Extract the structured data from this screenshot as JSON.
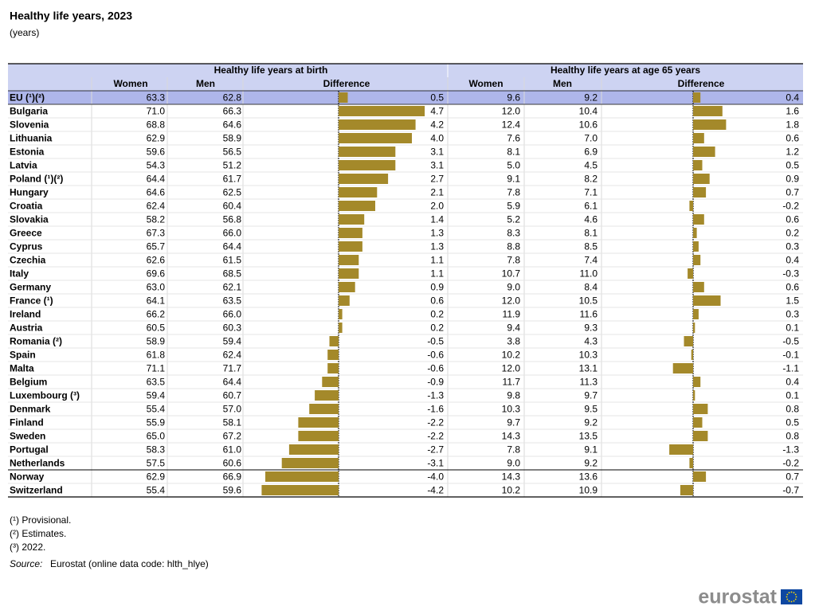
{
  "header": {
    "title": "Healthy life years, 2023",
    "subtitle": "(years)"
  },
  "table": {
    "groups": [
      "Healthy life years at birth",
      "Healthy life years at age 65 years"
    ],
    "columns": [
      "Women",
      "Men",
      "Difference",
      "Women",
      "Men",
      "Difference"
    ],
    "rows": [
      [
        "EU (¹)(²)",
        "63.3",
        "62.8",
        "0.5",
        "9.6",
        "9.2",
        "0.4"
      ],
      [
        "Bulgaria",
        "71.0",
        "66.3",
        "4.7",
        "12.0",
        "10.4",
        "1.6"
      ],
      [
        "Slovenia",
        "68.8",
        "64.6",
        "4.2",
        "12.4",
        "10.6",
        "1.8"
      ],
      [
        "Lithuania",
        "62.9",
        "58.9",
        "4.0",
        "7.6",
        "7.0",
        "0.6"
      ],
      [
        "Estonia",
        "59.6",
        "56.5",
        "3.1",
        "8.1",
        "6.9",
        "1.2"
      ],
      [
        "Latvia",
        "54.3",
        "51.2",
        "3.1",
        "5.0",
        "4.5",
        "0.5"
      ],
      [
        "Poland (¹)(²)",
        "64.4",
        "61.7",
        "2.7",
        "9.1",
        "8.2",
        "0.9"
      ],
      [
        "Hungary",
        "64.6",
        "62.5",
        "2.1",
        "7.8",
        "7.1",
        "0.7"
      ],
      [
        "Croatia",
        "62.4",
        "60.4",
        "2.0",
        "5.9",
        "6.1",
        "-0.2"
      ],
      [
        "Slovakia",
        "58.2",
        "56.8",
        "1.4",
        "5.2",
        "4.6",
        "0.6"
      ],
      [
        "Greece",
        "67.3",
        "66.0",
        "1.3",
        "8.3",
        "8.1",
        "0.2"
      ],
      [
        "Cyprus",
        "65.7",
        "64.4",
        "1.3",
        "8.8",
        "8.5",
        "0.3"
      ],
      [
        "Czechia",
        "62.6",
        "61.5",
        "1.1",
        "7.8",
        "7.4",
        "0.4"
      ],
      [
        "Italy",
        "69.6",
        "68.5",
        "1.1",
        "10.7",
        "11.0",
        "-0.3"
      ],
      [
        "Germany",
        "63.0",
        "62.1",
        "0.9",
        "9.0",
        "8.4",
        "0.6"
      ],
      [
        "France (¹)",
        "64.1",
        "63.5",
        "0.6",
        "12.0",
        "10.5",
        "1.5"
      ],
      [
        "Ireland",
        "66.2",
        "66.0",
        "0.2",
        "11.9",
        "11.6",
        "0.3"
      ],
      [
        "Austria",
        "60.5",
        "60.3",
        "0.2",
        "9.4",
        "9.3",
        "0.1"
      ],
      [
        "Romania (²)",
        "58.9",
        "59.4",
        "-0.5",
        "3.8",
        "4.3",
        "-0.5"
      ],
      [
        "Spain",
        "61.8",
        "62.4",
        "-0.6",
        "10.2",
        "10.3",
        "-0.1"
      ],
      [
        "Malta",
        "71.1",
        "71.7",
        "-0.6",
        "12.0",
        "13.1",
        "-1.1"
      ],
      [
        "Belgium",
        "63.5",
        "64.4",
        "-0.9",
        "11.7",
        "11.3",
        "0.4"
      ],
      [
        "Luxembourg (³)",
        "59.4",
        "60.7",
        "-1.3",
        "9.8",
        "9.7",
        "0.1"
      ],
      [
        "Denmark",
        "55.4",
        "57.0",
        "-1.6",
        "10.3",
        "9.5",
        "0.8"
      ],
      [
        "Finland",
        "55.9",
        "58.1",
        "-2.2",
        "9.7",
        "9.2",
        "0.5"
      ],
      [
        "Sweden",
        "65.0",
        "67.2",
        "-2.2",
        "14.3",
        "13.5",
        "0.8"
      ],
      [
        "Portugal",
        "58.3",
        "61.0",
        "-2.7",
        "7.8",
        "9.1",
        "-1.3"
      ],
      [
        "Netherlands",
        "57.5",
        "60.6",
        "-3.1",
        "9.0",
        "9.2",
        "-0.2"
      ],
      [
        "Norway",
        "62.9",
        "66.9",
        "-4.0",
        "14.3",
        "13.6",
        "0.7"
      ],
      [
        "Switzerland",
        "55.4",
        "59.6",
        "-4.2",
        "10.2",
        "10.9",
        "-0.7"
      ]
    ],
    "bar_color": "#a4892a"
  },
  "footnotes": [
    "(¹) Provisional.",
    "(²) Estimates.",
    "(³) 2022."
  ],
  "source": {
    "label": "Source:",
    "text": "Eurostat (online data code: hlth_hlye)"
  },
  "logo": {
    "text": "eurostat"
  }
}
